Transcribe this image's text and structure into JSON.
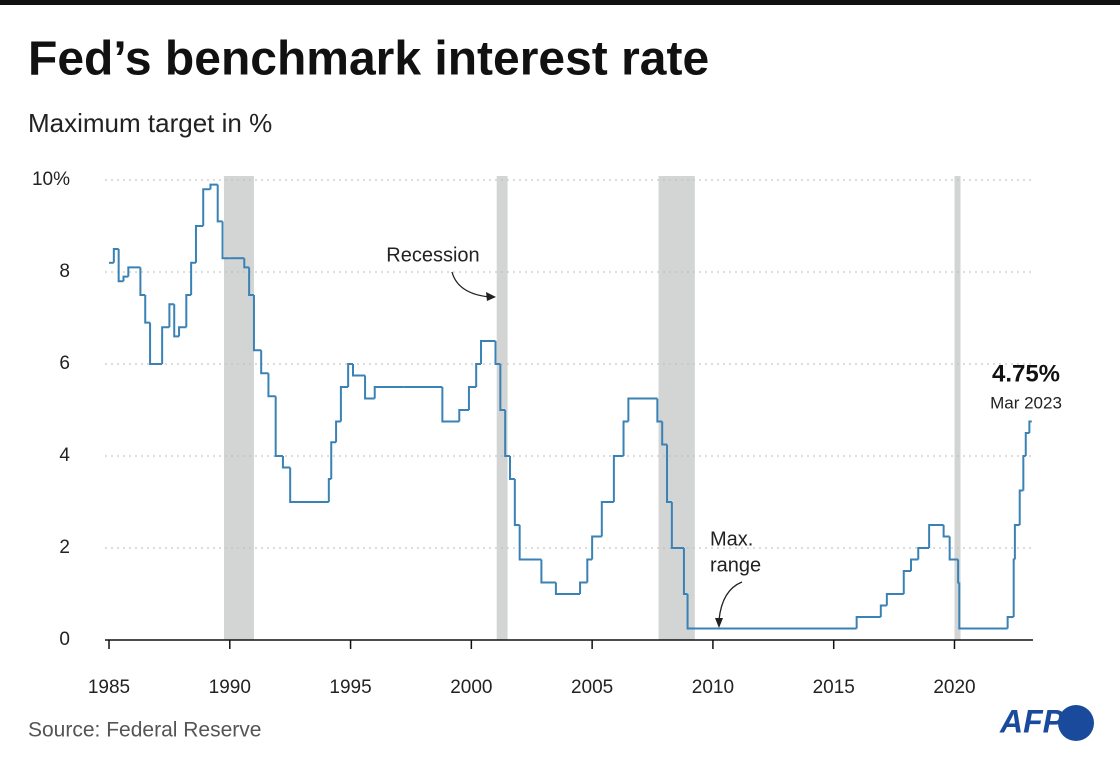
{
  "chart_data": {
    "type": "step",
    "title": "Fed’s benchmark interest rate",
    "subtitle": "Maximum target in %",
    "source": "Source: Federal Reserve",
    "logo": "AFP",
    "color": "#3a82b5",
    "recession_color": "#d3d4d4",
    "grid": true,
    "xlim": [
      1985,
      2023.25
    ],
    "xticks": [
      1985,
      1990,
      1995,
      2000,
      2005,
      2010,
      2015,
      2020
    ],
    "ylim": [
      0,
      10
    ],
    "yticks": [
      0,
      2,
      4,
      6,
      {
        "value": 10,
        "label": "10%"
      },
      8
    ],
    "recessions": [
      [
        1989.76,
        1991.0
      ],
      [
        2001.05,
        2001.5
      ],
      [
        2007.75,
        2009.25
      ],
      [
        2020.0,
        2020.25
      ]
    ],
    "annotations": {
      "recession": "Recession",
      "max_range": [
        "Max.",
        "range"
      ],
      "last_value": "4.75%",
      "last_date": "Mar 2023"
    },
    "x": [
      1985.0,
      1985.2,
      1985.4,
      1985.6,
      1985.8,
      1986.3,
      1986.5,
      1986.7,
      1987.2,
      1987.5,
      1987.7,
      1987.9,
      1988.2,
      1988.4,
      1988.6,
      1988.9,
      1989.2,
      1989.5,
      1989.7,
      1990.0,
      1990.6,
      1990.8,
      1991.0,
      1991.3,
      1991.6,
      1991.9,
      1992.2,
      1992.5,
      1992.8,
      1994.1,
      1994.2,
      1994.4,
      1994.6,
      1994.9,
      1995.1,
      1995.6,
      1996.0,
      1997.2,
      1998.8,
      1999.5,
      1999.9,
      2000.2,
      2000.4,
      2001.0,
      2001.2,
      2001.4,
      2001.6,
      2001.8,
      2002.0,
      2002.9,
      2003.5,
      2004.5,
      2004.8,
      2005.0,
      2005.4,
      2005.9,
      2006.3,
      2006.5,
      2007.7,
      2007.9,
      2008.1,
      2008.3,
      2008.8,
      2008.95,
      2015.95,
      2016.95,
      2017.2,
      2017.9,
      2018.2,
      2018.5,
      2018.95,
      2019.55,
      2019.8,
      2020.15,
      2020.2,
      2022.2,
      2022.45,
      2022.5,
      2022.7,
      2022.85,
      2022.95,
      2023.1,
      2023.2
    ],
    "values": [
      8.2,
      8.5,
      7.8,
      7.9,
      8.1,
      7.5,
      6.9,
      6.0,
      6.8,
      7.3,
      6.6,
      6.8,
      7.5,
      8.2,
      9.0,
      9.8,
      9.9,
      9.1,
      8.3,
      8.3,
      8.1,
      7.5,
      6.3,
      5.8,
      5.3,
      4.0,
      3.75,
      3.0,
      3.0,
      3.5,
      4.3,
      4.75,
      5.5,
      6.0,
      5.75,
      5.25,
      5.5,
      5.5,
      4.75,
      5.0,
      5.5,
      6.0,
      6.5,
      6.0,
      5.0,
      4.0,
      3.5,
      2.5,
      1.75,
      1.25,
      1.0,
      1.25,
      1.75,
      2.25,
      3.0,
      4.0,
      4.75,
      5.25,
      4.75,
      4.25,
      3.0,
      2.0,
      1.0,
      0.25,
      0.5,
      0.75,
      1.0,
      1.5,
      1.75,
      2.0,
      2.5,
      2.25,
      1.75,
      1.25,
      0.25,
      0.5,
      1.75,
      2.5,
      3.25,
      4.0,
      4.5,
      4.75,
      4.75
    ]
  }
}
